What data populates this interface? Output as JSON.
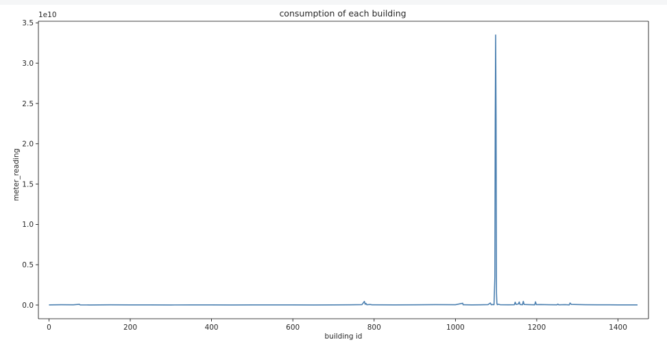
{
  "chart_data": {
    "type": "line",
    "title": "consumption of each building",
    "xlabel": "building id",
    "ylabel": "meter_reading",
    "y_offset_text": "1e10",
    "xlim": [
      -26,
      1475
    ],
    "ylim": [
      -1700000000.0,
      35200000000.0
    ],
    "x_ticks": [
      0,
      200,
      400,
      600,
      800,
      1000,
      1200,
      1400
    ],
    "x_tick_labels": [
      "0",
      "200",
      "400",
      "600",
      "800",
      "1000",
      "1200",
      "1400"
    ],
    "y_ticks": [
      0,
      5000000000.0,
      10000000000.0,
      15000000000.0,
      20000000000.0,
      25000000000.0,
      30000000000.0,
      35000000000.0
    ],
    "y_tick_labels": [
      "0.0",
      "0.5",
      "1.0",
      "1.5",
      "2.0",
      "2.5",
      "3.0",
      "3.5"
    ],
    "grid": false,
    "legend": false,
    "series": [
      {
        "color": "#4a7fb0",
        "x": [
          0,
          30,
          60,
          75,
          76,
          77,
          100,
          150,
          200,
          250,
          300,
          350,
          400,
          450,
          500,
          550,
          600,
          650,
          700,
          740,
          770,
          776,
          778,
          780,
          782,
          790,
          795,
          800,
          850,
          900,
          950,
          1000,
          1018,
          1019,
          1020,
          1040,
          1060,
          1080,
          1086,
          1088,
          1090,
          1095,
          1097,
          1098,
          1099,
          1100,
          1101,
          1102,
          1103,
          1105,
          1110,
          1130,
          1145,
          1147,
          1149,
          1155,
          1157,
          1159,
          1165,
          1167,
          1169,
          1180,
          1195,
          1197,
          1199,
          1210,
          1230,
          1250,
          1252,
          1254,
          1270,
          1280,
          1282,
          1285,
          1300,
          1320,
          1350,
          1400,
          1448
        ],
        "y": [
          20000000.0,
          40000000.0,
          30000000.0,
          90000000.0,
          30000000.0,
          20000000.0,
          10000000.0,
          30000000.0,
          20000000.0,
          20000000.0,
          10000000.0,
          20000000.0,
          20000000.0,
          10000000.0,
          20000000.0,
          20000000.0,
          20000000.0,
          10000000.0,
          20000000.0,
          30000000.0,
          50000000.0,
          450000000.0,
          90000000.0,
          200000000.0,
          40000000.0,
          70000000.0,
          30000000.0,
          30000000.0,
          20000000.0,
          30000000.0,
          50000000.0,
          40000000.0,
          220000000.0,
          30000000.0,
          40000000.0,
          20000000.0,
          30000000.0,
          50000000.0,
          250000000.0,
          40000000.0,
          60000000.0,
          50000000.0,
          3500000000.0,
          23000000000.0,
          33500000000.0,
          23000000000.0,
          1500000000.0,
          200000000.0,
          40000000.0,
          100000000.0,
          40000000.0,
          30000000.0,
          40000000.0,
          350000000.0,
          80000000.0,
          130000000.0,
          380000000.0,
          60000000.0,
          40000000.0,
          450000000.0,
          70000000.0,
          50000000.0,
          30000000.0,
          400000000.0,
          50000000.0,
          60000000.0,
          40000000.0,
          30000000.0,
          120000000.0,
          30000000.0,
          50000000.0,
          20000000.0,
          250000000.0,
          80000000.0,
          60000000.0,
          40000000.0,
          30000000.0,
          20000000.0,
          20000000.0
        ]
      }
    ]
  }
}
